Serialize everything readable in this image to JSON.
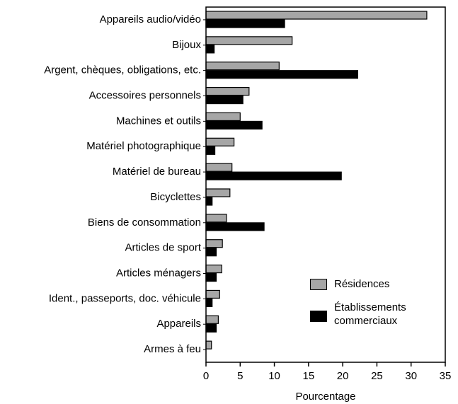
{
  "chart_data": {
    "type": "barh",
    "categories": [
      "Appareils audio/vidéo",
      "Bijoux",
      "Argent, chèques, obligations, etc.",
      "Accessoires personnels",
      "Machines et outils",
      "Matériel photographique",
      "Matériel de bureau",
      "Bicyclettes",
      "Biens de consommation",
      "Articles de sport",
      "Articles ménagers",
      "Ident., passeports, doc. véhicule",
      "Appareils",
      "Armes à feu"
    ],
    "series": [
      {
        "name": "Résidences",
        "color": "#a6a6a6",
        "values": [
          32.3,
          12.6,
          10.7,
          6.3,
          5.0,
          4.1,
          3.8,
          3.5,
          3.0,
          2.4,
          2.3,
          2.0,
          1.8,
          0.8
        ]
      },
      {
        "name": "Établissements commerciaux",
        "color": "#000000",
        "values": [
          11.5,
          1.2,
          22.2,
          5.4,
          8.2,
          1.3,
          19.8,
          0.9,
          8.5,
          1.5,
          1.5,
          0.9,
          1.5,
          0
        ]
      }
    ],
    "x_label": "Pourcentage",
    "xlim": [
      0,
      35
    ],
    "xticks": [
      0,
      5,
      10,
      15,
      20,
      25,
      30,
      35
    ],
    "legend": "lower right"
  }
}
